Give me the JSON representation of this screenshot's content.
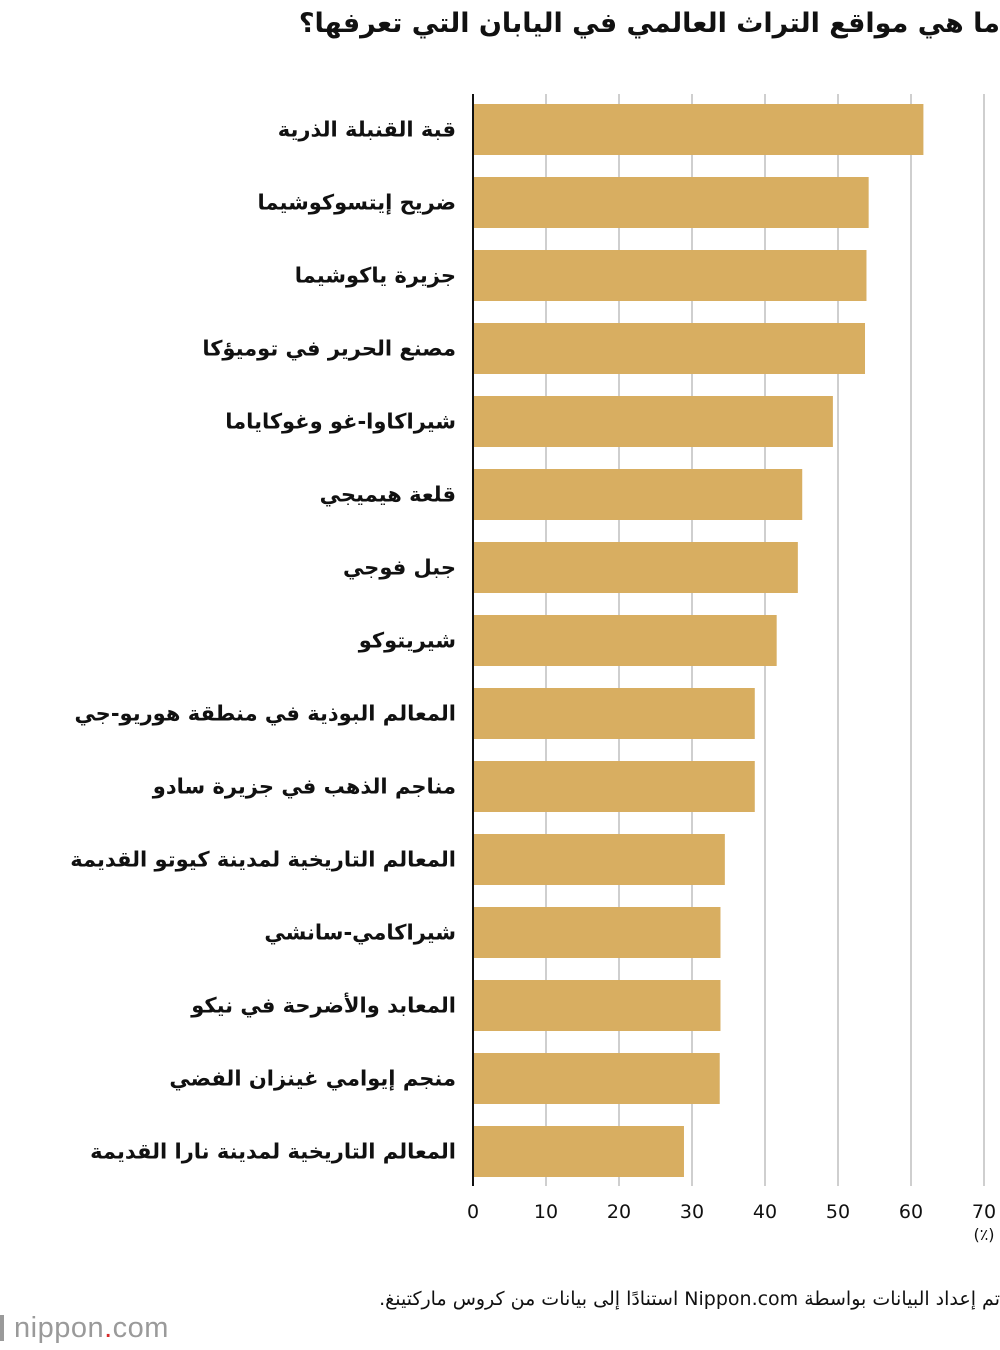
{
  "chart_data": {
    "type": "bar",
    "orientation": "horizontal",
    "title": "ما هي مواقع التراث العالمي في اليابان التي تعرفها؟",
    "categories": [
      "قبة القنبلة الذرية",
      "ضريح إيتسوكوشيما",
      "جزيرة ياكوشيما",
      "مصنع الحرير في توميؤكا",
      "شيراكاوا-غو وغوكاياما",
      "قلعة هيميجي",
      "جبل فوجي",
      "شيريتوكو",
      "المعالم البوذية في منطقة هوريو-جي",
      "مناجم الذهب في جزيرة سادو",
      "المعالم التاريخية لمدينة كيوتو القديمة",
      "شيراكامي-سانشي",
      "المعابد والأضرحة في نيكو",
      "منجم إيوامي غينزان الفضي",
      "المعالم التاريخية لمدينة نارا القديمة"
    ],
    "values": [
      61.7,
      54.2,
      53.9,
      53.7,
      49.3,
      45.1,
      44.5,
      41.6,
      38.6,
      38.6,
      34.5,
      33.9,
      33.9,
      33.8,
      28.9
    ],
    "xlim": [
      0,
      70
    ],
    "xticks": [
      0,
      10,
      20,
      30,
      40,
      50,
      60,
      70
    ],
    "xlabel": "(٪)",
    "grid": true,
    "legend": "none",
    "bar_color": "#d8ae61",
    "grid_color": "#cfcfcf"
  },
  "source_note": "تم إعداد البيانات بواسطة Nippon.com استنادًا إلى بيانات من كروس ماركتينغ.",
  "logo": {
    "word": "nippon",
    "dot": ".",
    "suffix": "com"
  }
}
